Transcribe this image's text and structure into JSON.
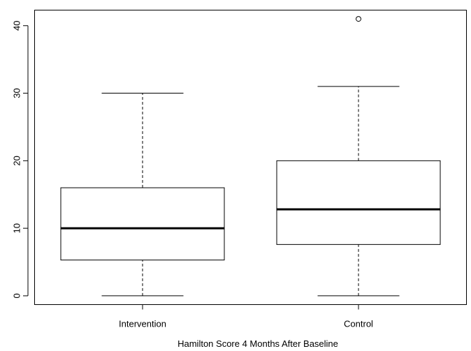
{
  "chart_data": {
    "type": "boxplot",
    "title": "",
    "xlabel": "Hamilton Score 4 Months After Baseline",
    "ylabel": "",
    "ylim": [
      -1.3,
      42.3
    ],
    "yticks": [
      0,
      10,
      20,
      30,
      40
    ],
    "grid": false,
    "categories": [
      "Intervention",
      "Control"
    ],
    "series": [
      {
        "category": "Intervention",
        "min": 0,
        "q1": 5.3,
        "median": 10,
        "q3": 16,
        "max": 30,
        "outliers": []
      },
      {
        "category": "Control",
        "min": 0,
        "q1": 7.6,
        "median": 12.8,
        "q3": 20,
        "max": 31,
        "outliers": [
          41
        ]
      }
    ]
  }
}
